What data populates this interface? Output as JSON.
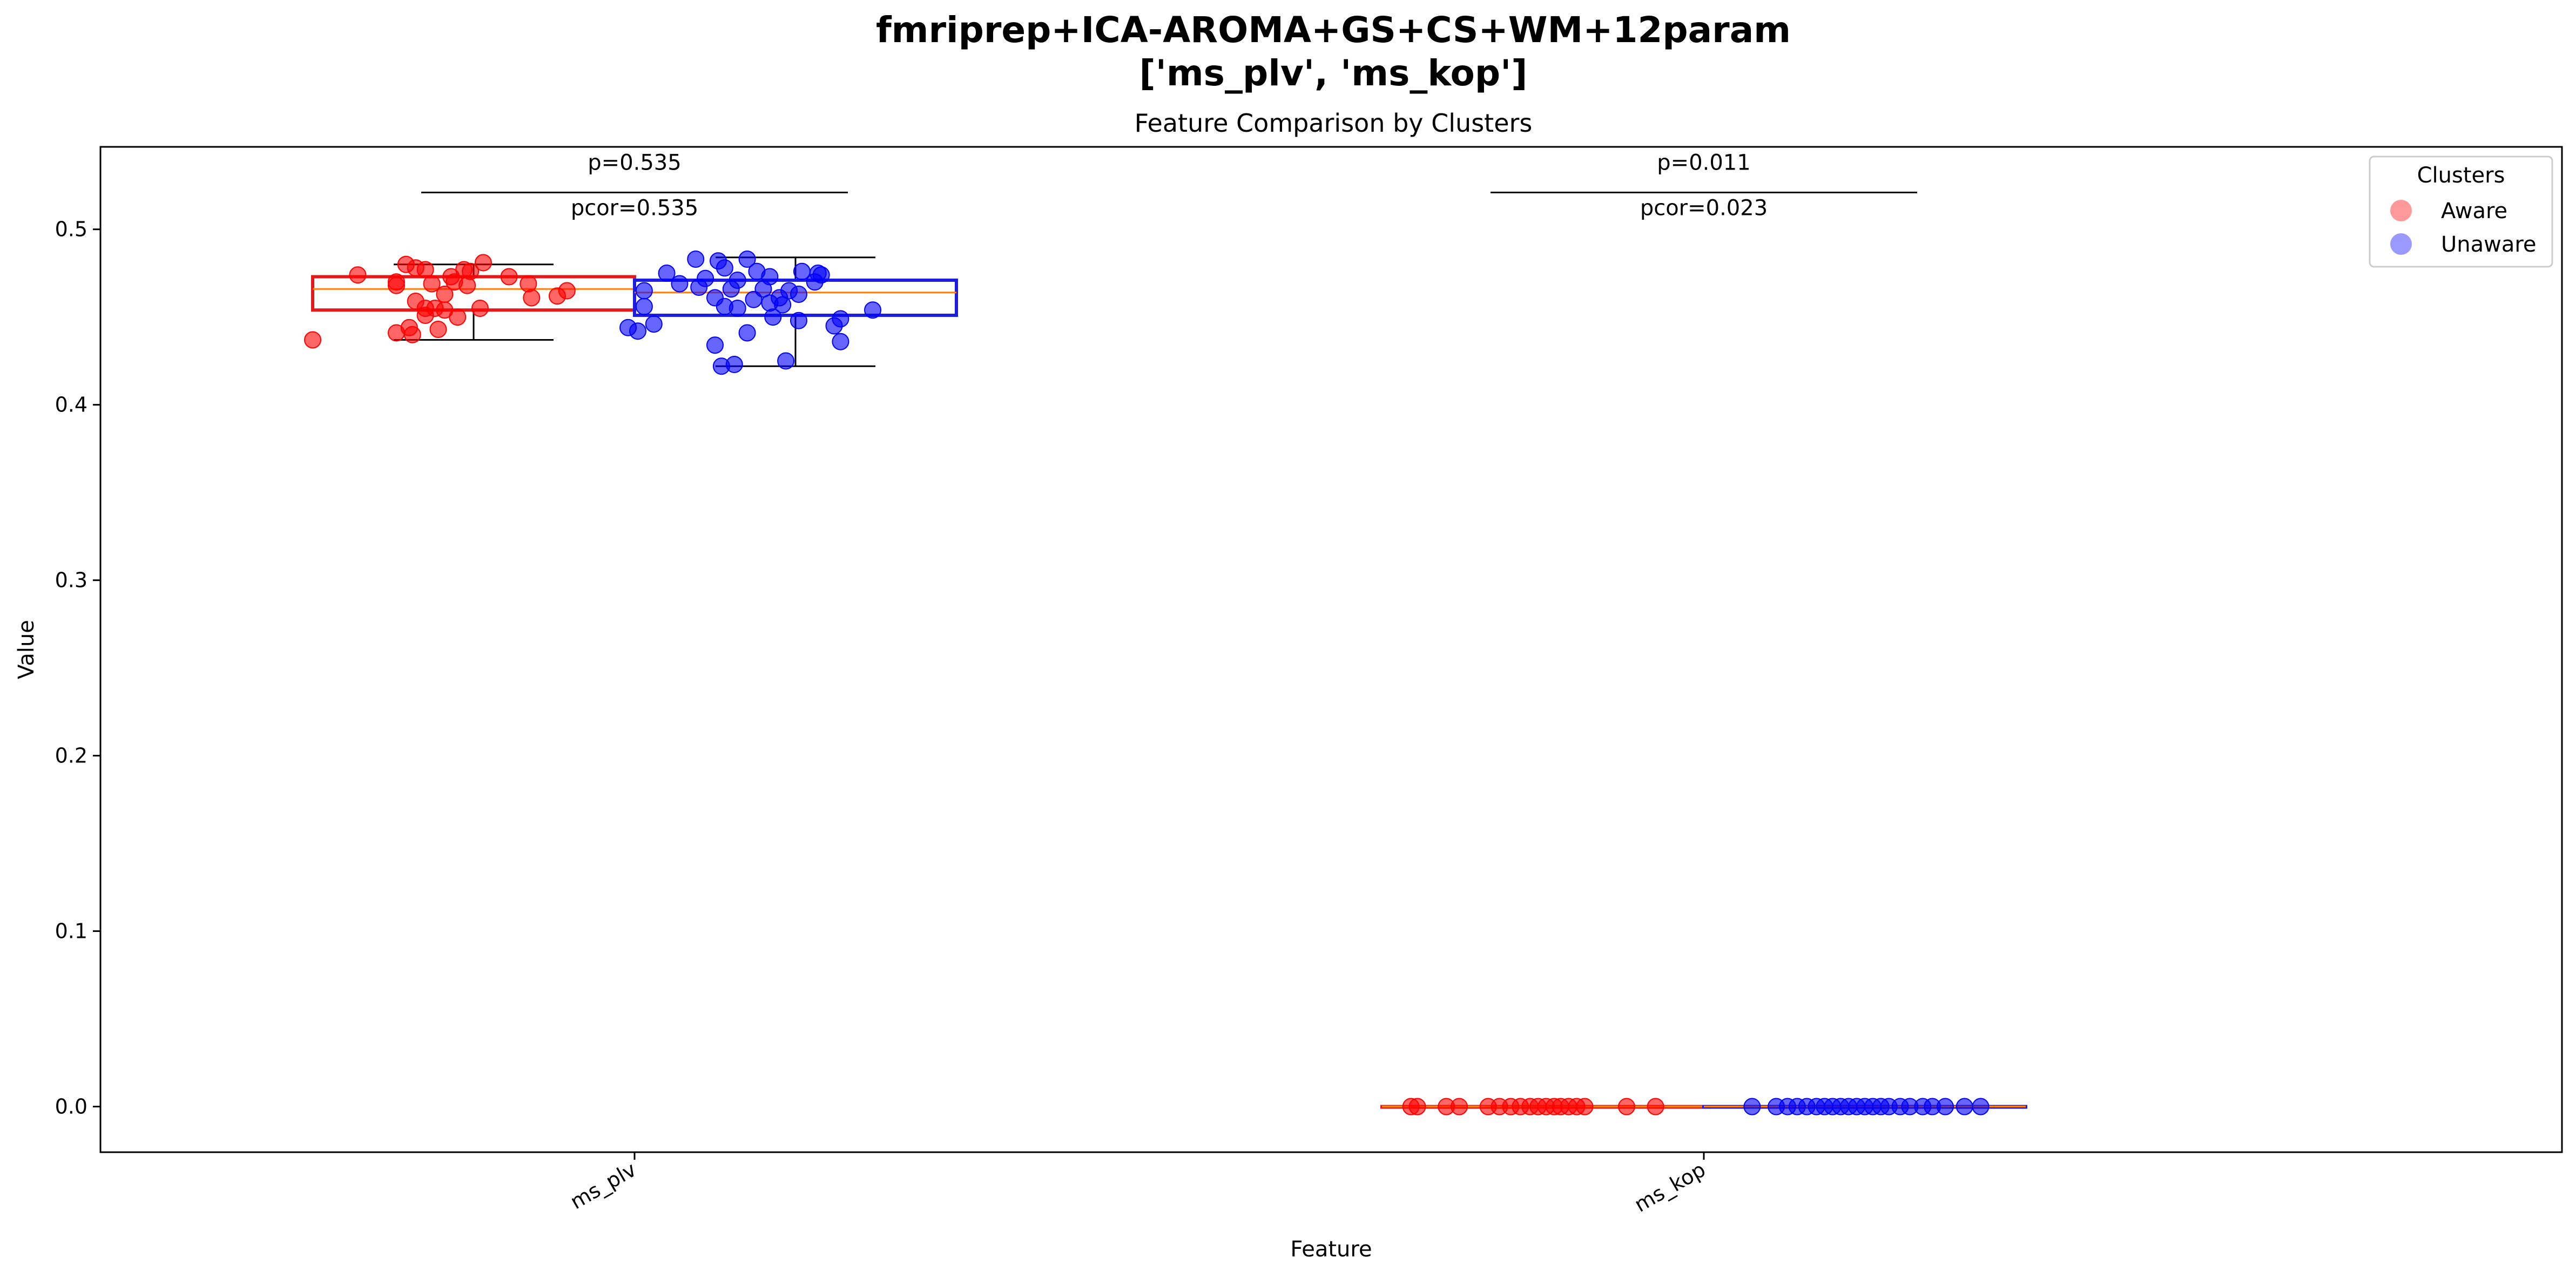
{
  "chart_data": {
    "type": "box",
    "title": "fmriprep+ICA-AROMA+GS+CS+WM+12param",
    "title_line2": "['ms_plv', 'ms_kop']",
    "subtitle": "Feature Comparison by Clusters",
    "xlabel": "Feature",
    "ylabel": "Value",
    "ylim": [
      -0.026,
      0.547
    ],
    "yticks": [
      0.0,
      0.1,
      0.2,
      0.3,
      0.4,
      0.5
    ],
    "ytick_labels": [
      "0.0",
      "0.1",
      "0.2",
      "0.3",
      "0.4",
      "0.5"
    ],
    "categories": [
      "ms_plv",
      "ms_kop"
    ],
    "legend": {
      "title": "Clusters",
      "position": "top-right",
      "entries": [
        {
          "label": "Aware",
          "color": "#ff9999"
        },
        {
          "label": "Unaware",
          "color": "#9999ff"
        }
      ]
    },
    "series": [
      {
        "name": "Aware",
        "edge_color": "#e31a1c",
        "point_color": "#ff0000",
        "boxes": [
          {
            "feature": "ms_plv",
            "whisker_low": 0.437,
            "q1": 0.454,
            "median": 0.466,
            "q3": 0.473,
            "whisker_high": 0.48
          },
          {
            "feature": "ms_kop",
            "whisker_low": 0.0,
            "q1": 0.0,
            "median": 0.0,
            "q3": 0.0,
            "whisker_high": 0.0
          }
        ],
        "points": {
          "ms_plv": [
            [
              -0.72,
              0.474
            ],
            [
              -0.42,
              0.48
            ],
            [
              -0.36,
              0.478
            ],
            [
              -0.3,
              0.477
            ],
            [
              -0.06,
              0.477
            ],
            [
              -0.02,
              0.476
            ],
            [
              0.06,
              0.481
            ],
            [
              -0.14,
              0.473
            ],
            [
              0.22,
              0.473
            ],
            [
              -0.48,
              0.47
            ],
            [
              -0.26,
              0.469
            ],
            [
              -0.12,
              0.47
            ],
            [
              -0.04,
              0.468
            ],
            [
              0.34,
              0.469
            ],
            [
              -0.48,
              0.468
            ],
            [
              -0.18,
              0.463
            ],
            [
              0.52,
              0.462
            ],
            [
              0.58,
              0.465
            ],
            [
              0.36,
              0.461
            ],
            [
              -0.36,
              0.459
            ],
            [
              -0.3,
              0.455
            ],
            [
              -0.24,
              0.455
            ],
            [
              0.04,
              0.455
            ],
            [
              -0.3,
              0.451
            ],
            [
              -0.18,
              0.454
            ],
            [
              -0.1,
              0.45
            ],
            [
              -0.4,
              0.444
            ],
            [
              -0.48,
              0.441
            ],
            [
              -0.38,
              0.44
            ],
            [
              -0.22,
              0.443
            ],
            [
              -1.0,
              0.437
            ]
          ],
          "ms_kop": [
            [
              -0.82,
              0.0
            ],
            [
              -0.78,
              0.0
            ],
            [
              -0.6,
              0.0
            ],
            [
              -0.52,
              0.0
            ],
            [
              -0.34,
              0.0
            ],
            [
              -0.27,
              0.0
            ],
            [
              -0.2,
              0.0
            ],
            [
              -0.14,
              0.0
            ],
            [
              -0.08,
              0.0
            ],
            [
              -0.03,
              0.0
            ],
            [
              0.02,
              0.0
            ],
            [
              0.07,
              0.0
            ],
            [
              0.11,
              0.0
            ],
            [
              0.16,
              0.0
            ],
            [
              0.21,
              0.0
            ],
            [
              0.26,
              0.0
            ],
            [
              0.52,
              0.0
            ],
            [
              0.7,
              0.0
            ]
          ]
        }
      },
      {
        "name": "Unaware",
        "edge_color": "#1c1ce3",
        "point_color": "#0000ff",
        "boxes": [
          {
            "feature": "ms_plv",
            "whisker_low": 0.422,
            "q1": 0.451,
            "median": 0.464,
            "q3": 0.471,
            "whisker_high": 0.484
          },
          {
            "feature": "ms_kop",
            "whisker_low": 0.0,
            "q1": 0.0,
            "median": 0.0,
            "q3": 0.0,
            "whisker_high": 0.0
          }
        ],
        "points": {
          "ms_plv": [
            [
              -0.62,
              0.483
            ],
            [
              -0.48,
              0.482
            ],
            [
              -0.3,
              0.483
            ],
            [
              -0.44,
              0.478
            ],
            [
              -0.24,
              0.476
            ],
            [
              0.04,
              0.476
            ],
            [
              0.14,
              0.475
            ],
            [
              -0.8,
              0.475
            ],
            [
              -0.56,
              0.472
            ],
            [
              -0.36,
              0.471
            ],
            [
              -0.16,
              0.473
            ],
            [
              0.12,
              0.47
            ],
            [
              0.16,
              0.474
            ],
            [
              -0.72,
              0.469
            ],
            [
              -0.6,
              0.467
            ],
            [
              -0.4,
              0.466
            ],
            [
              -0.2,
              0.466
            ],
            [
              -0.04,
              0.465
            ],
            [
              0.02,
              0.463
            ],
            [
              -0.94,
              0.465
            ],
            [
              -0.5,
              0.461
            ],
            [
              -0.26,
              0.46
            ],
            [
              -0.1,
              0.461
            ],
            [
              -0.16,
              0.458
            ],
            [
              -0.08,
              0.457
            ],
            [
              -0.36,
              0.455
            ],
            [
              -0.44,
              0.456
            ],
            [
              -0.94,
              0.456
            ],
            [
              0.48,
              0.454
            ],
            [
              -0.14,
              0.45
            ],
            [
              0.02,
              0.448
            ],
            [
              0.28,
              0.449
            ],
            [
              -1.04,
              0.444
            ],
            [
              -0.98,
              0.442
            ],
            [
              -0.88,
              0.446
            ],
            [
              0.24,
              0.445
            ],
            [
              -0.3,
              0.441
            ],
            [
              -0.5,
              0.434
            ],
            [
              0.28,
              0.436
            ],
            [
              -0.46,
              0.422
            ],
            [
              -0.38,
              0.423
            ],
            [
              -0.06,
              0.425
            ]
          ],
          "ms_kop": [
            [
              -0.7,
              0.0
            ],
            [
              -0.55,
              0.0
            ],
            [
              -0.48,
              0.0
            ],
            [
              -0.42,
              0.0
            ],
            [
              -0.36,
              0.0
            ],
            [
              -0.3,
              0.0
            ],
            [
              -0.25,
              0.0
            ],
            [
              -0.2,
              0.0
            ],
            [
              -0.15,
              0.0
            ],
            [
              -0.1,
              0.0
            ],
            [
              -0.05,
              0.0
            ],
            [
              0.0,
              0.0
            ],
            [
              0.05,
              0.0
            ],
            [
              0.1,
              0.0
            ],
            [
              0.15,
              0.0
            ],
            [
              0.22,
              0.0
            ],
            [
              0.28,
              0.0
            ],
            [
              0.36,
              0.0
            ],
            [
              0.42,
              0.0
            ],
            [
              0.5,
              0.0
            ],
            [
              0.62,
              0.0
            ],
            [
              0.72,
              0.0
            ]
          ]
        }
      }
    ],
    "annotations": [
      {
        "feature": "ms_plv",
        "p_text": "p=0.535",
        "p_color": "#000000",
        "pcor_text": "pcor=0.535",
        "line_y": 0.521
      },
      {
        "feature": "ms_kop",
        "p_text": "p=0.011",
        "p_color": "#008000",
        "pcor_text": "pcor=0.023",
        "line_y": 0.521
      }
    ]
  }
}
